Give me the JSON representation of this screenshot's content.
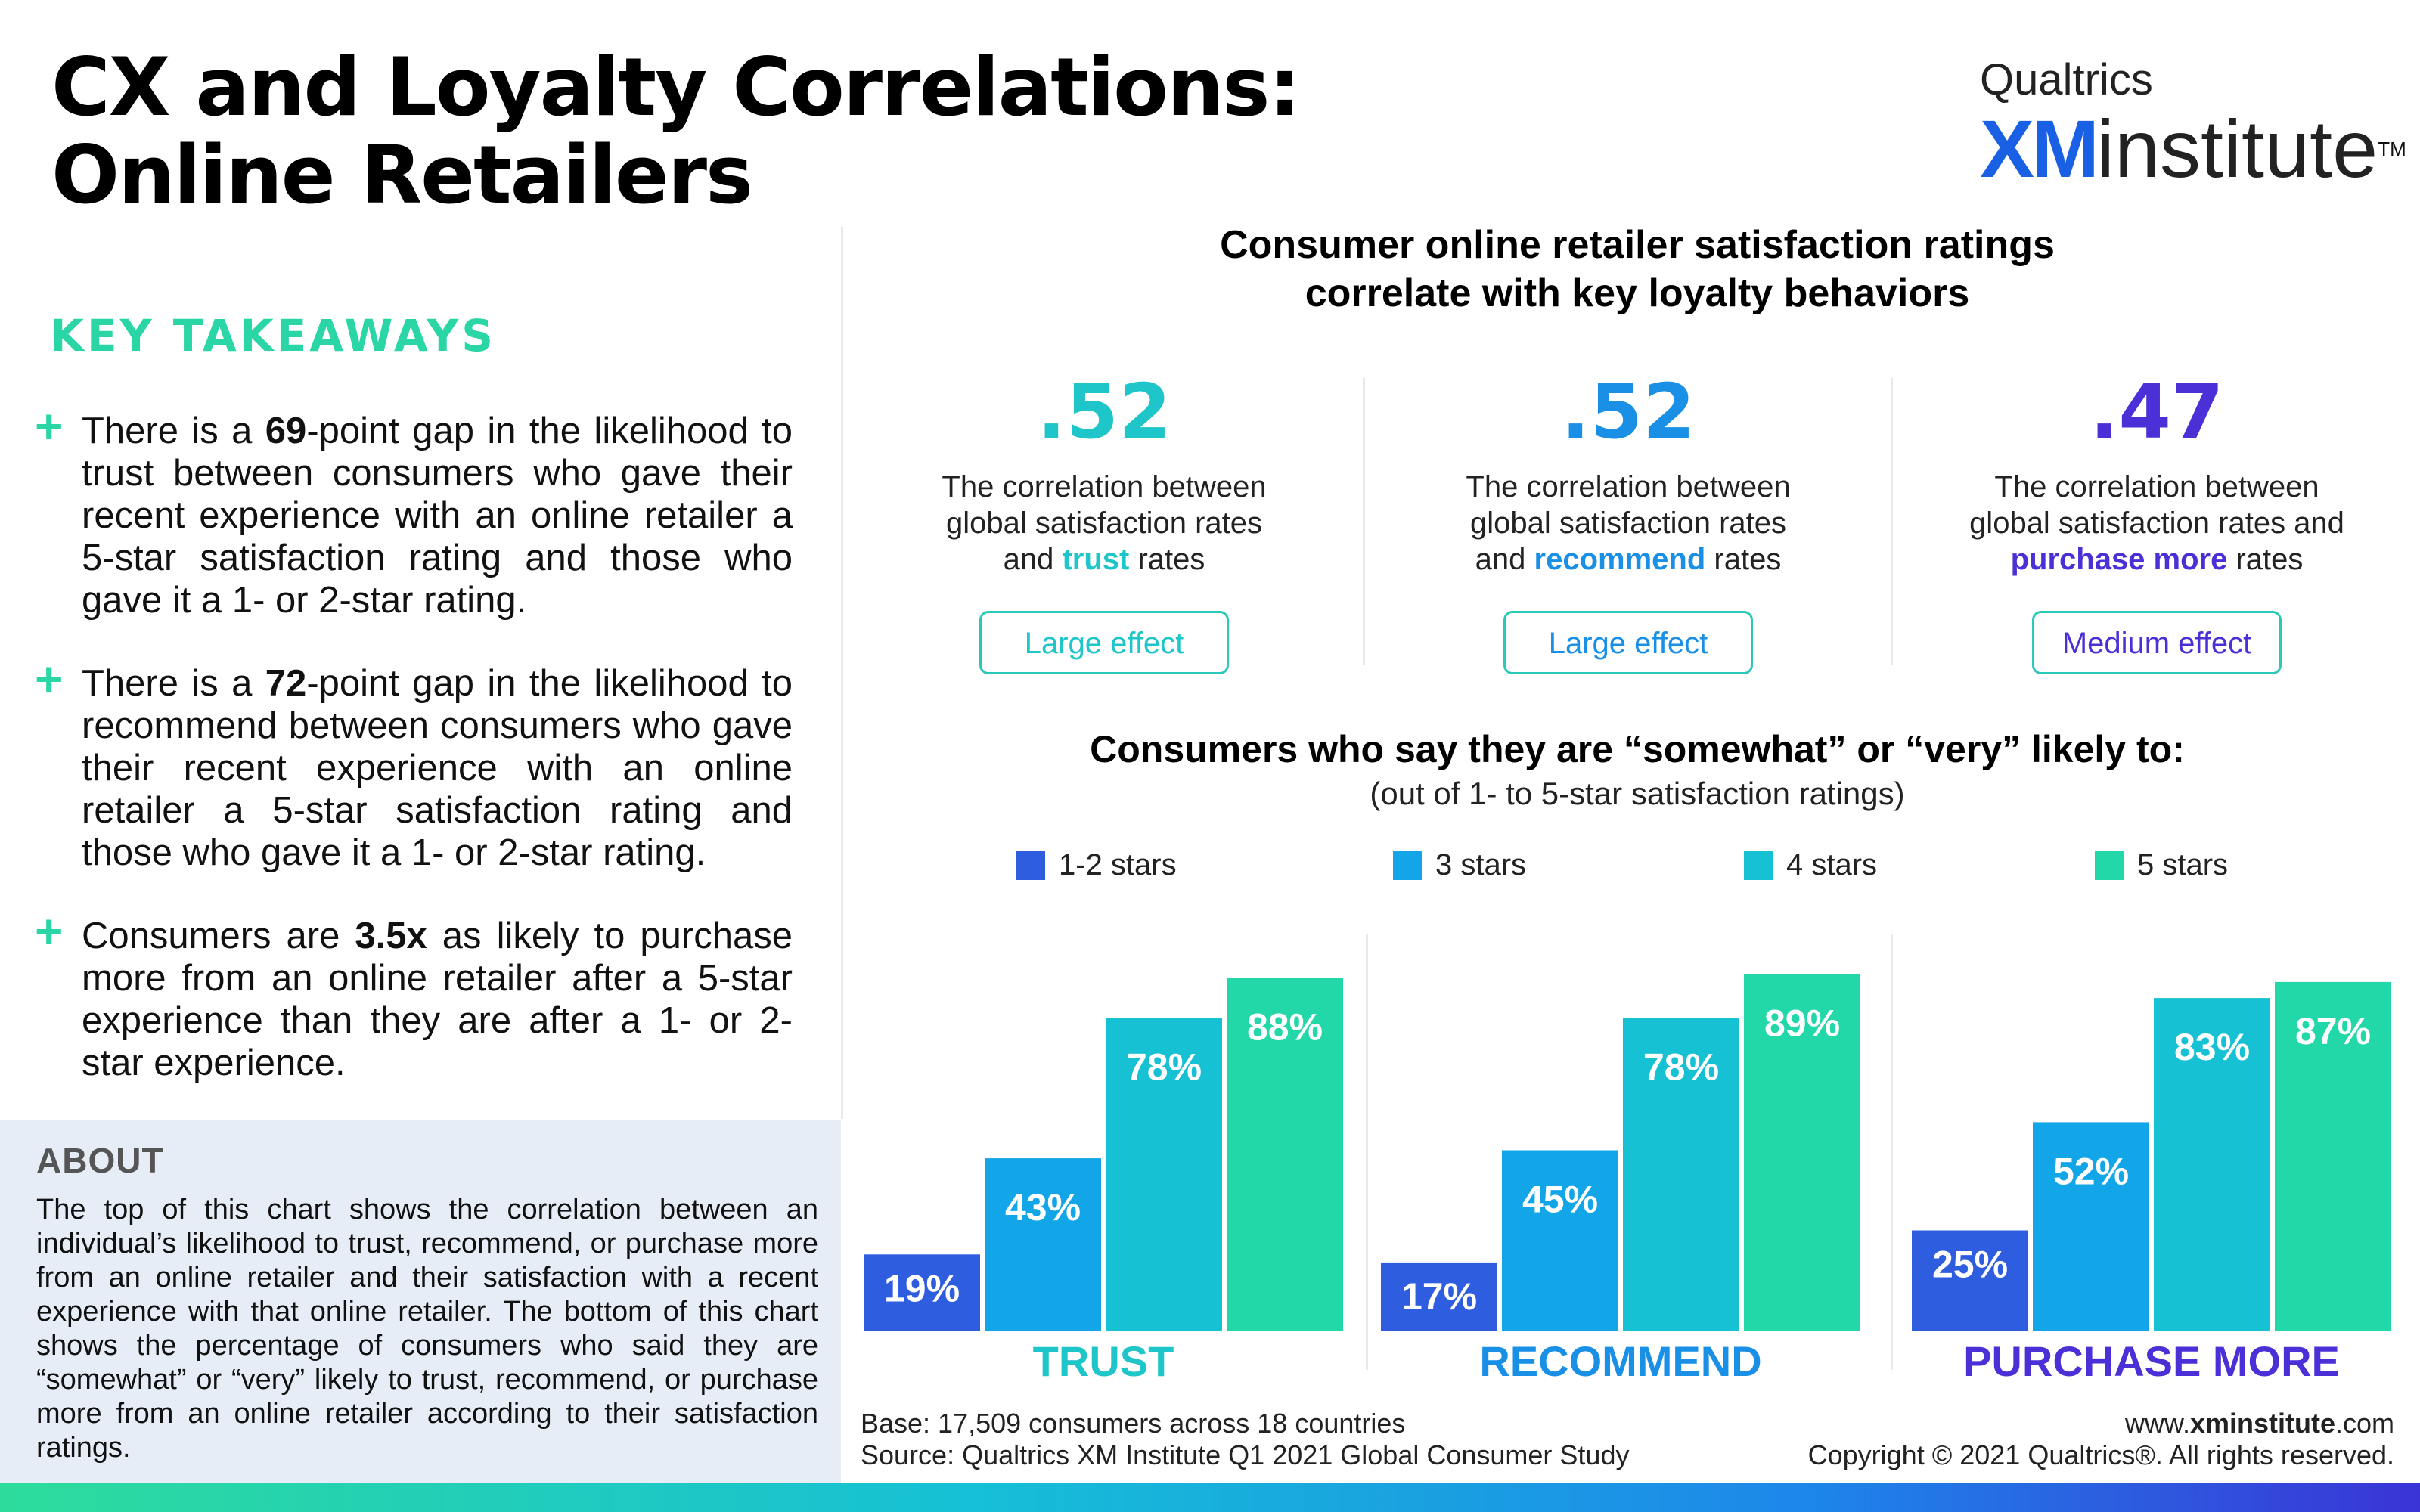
{
  "title": {
    "line1": "CX and Loyalty Correlations:",
    "line2": "Online Retailers"
  },
  "logo": {
    "top": "Qualtrics",
    "xm": "XM",
    "institute": "institute",
    "tm": "TM"
  },
  "takeaways": {
    "heading": "KEY TAKEAWAYS",
    "items": [
      {
        "pre": "There is a ",
        "bold": "69",
        "post": "-point gap in the likelihood to trust between consumers who gave their recent experience with an online retailer a 5-star satisfaction rating and those who gave it a 1- or 2-star rating."
      },
      {
        "pre": "There is a ",
        "bold": "72",
        "post": "-point gap in the likelihood to recommend between consumers who gave their recent experience with an online retailer a 5-star satisfaction rating and those who gave it a 1- or 2-star rating."
      },
      {
        "pre": "Consumers are ",
        "bold": "3.5x",
        "post": " as likely to purchase more from an online retailer after a 5-star experience than they are after a 1- or 2-star experience."
      }
    ]
  },
  "about": {
    "heading": "ABOUT",
    "text": "The top of this chart shows the correlation between an individual’s likelihood to trust, recommend, or purchase more from an online retailer and their satisfaction with a recent experience with that online retailer. The bottom of this chart shows the percentage of consumers who said they are “somewhat” or “very” likely to trust, recommend, or purchase more from an online retailer according to their satisfaction ratings."
  },
  "correlations": {
    "heading_line1": "Consumer online retailer satisfaction ratings",
    "heading_line2": "correlate with key loyalty behaviors",
    "items": [
      {
        "value": ".52",
        "desc_line1": "The correlation between",
        "desc_line2": "global satisfaction rates",
        "desc_pre": "and ",
        "desc_bold": "trust",
        "desc_post": " rates",
        "effect": "Large effect",
        "color": "#1ec5c9"
      },
      {
        "value": ".52",
        "desc_line1": "The correlation between",
        "desc_line2": "global satisfaction rates",
        "desc_pre": "and ",
        "desc_bold": "recommend",
        "desc_post": " rates",
        "effect": "Large effect",
        "color": "#1a8fe6"
      },
      {
        "value": ".47",
        "desc_line1": "The correlation between",
        "desc_line2": "global satisfaction rates and",
        "desc_pre": "",
        "desc_bold": "purchase more",
        "desc_post": " rates",
        "effect": "Medium effect",
        "color": "#4a30d6"
      }
    ]
  },
  "chart_data": {
    "type": "bar",
    "title": "Consumers who say they are “somewhat” or “very” likely to:",
    "subtitle": "(out of 1- to 5-star satisfaction ratings)",
    "categories": [
      "TRUST",
      "RECOMMEND",
      "PURCHASE MORE"
    ],
    "category_colors": [
      "#1ec5c9",
      "#1a8fe6",
      "#4a30d6"
    ],
    "series": [
      {
        "name": "1-2 stars",
        "values": [
          19,
          17,
          25
        ],
        "color": "#2f5de0"
      },
      {
        "name": "3 stars",
        "values": [
          43,
          45,
          52
        ],
        "color": "#12a6e8"
      },
      {
        "name": "4 stars",
        "values": [
          78,
          78,
          83
        ],
        "color": "#16c1d4"
      },
      {
        "name": "5 stars",
        "values": [
          88,
          89,
          87
        ],
        "color": "#22d8a8"
      }
    ],
    "value_suffix": "%",
    "ylim": [
      0,
      100
    ],
    "legend": "top",
    "grid": false
  },
  "footer": {
    "base": "Base: 17,509 consumers across 18 countries",
    "source": "Source: Qualtrics XM Institute Q1 2021 Global Consumer Study",
    "url_pre": "www.",
    "url_bold": "xminstitute",
    "url_post": ".com",
    "copyright": "Copyright © 2021 Qualtrics®. All rights reserved."
  }
}
